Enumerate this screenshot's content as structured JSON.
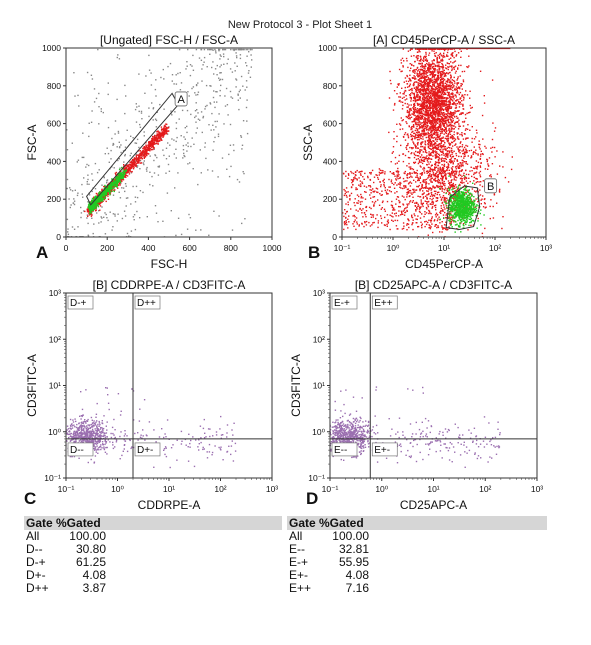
{
  "page_title": "New Protocol 3 - Plot Sheet 1",
  "colors": {
    "red": "#e41a1c",
    "green": "#22c922",
    "purple": "#9b6fb0",
    "gray": "#888888",
    "gate": "#555555"
  },
  "chart_data": [
    {
      "id": "A",
      "panel_letter": "A",
      "type": "scatter",
      "title": "[Ungated] FSC-H / FSC-A",
      "xlabel": "FSC-H",
      "ylabel": "FSC-A",
      "xscale": "linear",
      "yscale": "linear",
      "xlim": [
        0,
        1000
      ],
      "ylim": [
        0,
        1000
      ],
      "xticks": [
        "0",
        "200",
        "400",
        "600",
        "800",
        "1000"
      ],
      "yticks": [
        "0",
        "200",
        "400",
        "600",
        "800",
        "1000"
      ],
      "gates": [
        {
          "label": "A",
          "shape": "polygon"
        }
      ],
      "description_points": [
        [
          120,
          180
        ],
        [
          200,
          260
        ],
        [
          300,
          340
        ],
        [
          400,
          430
        ],
        [
          500,
          560
        ]
      ]
    },
    {
      "id": "B",
      "panel_letter": "B",
      "type": "scatter",
      "title": "[A] CD45PerCP-A / SSC-A",
      "xlabel": "CD45PerCP-A",
      "ylabel": "SSC-A",
      "xscale": "log",
      "yscale": "linear",
      "xlim": [
        0.1,
        1000
      ],
      "ylim": [
        0,
        1000
      ],
      "xticks": [
        "10⁻¹",
        "10⁰",
        "10¹",
        "10²",
        "10³"
      ],
      "yticks": [
        "0",
        "200",
        "400",
        "600",
        "800",
        "1000"
      ],
      "gates": [
        {
          "label": "B",
          "shape": "polygon"
        }
      ]
    },
    {
      "id": "C",
      "panel_letter": "C",
      "type": "scatter",
      "title": "[B] CDDRPE-A / CD3FITC-A",
      "xlabel": "CDDRPE-A",
      "ylabel": "CD3FITC-A",
      "xscale": "log",
      "yscale": "log",
      "xlim": [
        0.1,
        1000
      ],
      "ylim": [
        0.1,
        1000
      ],
      "xticks": [
        "10⁻¹",
        "10⁰",
        "10¹",
        "10²",
        "10³"
      ],
      "yticks": [
        "10⁻¹",
        "10⁰",
        "10¹",
        "10²",
        "10³"
      ],
      "quadrant_lines": {
        "x": 2,
        "y": 0.7
      },
      "quadrants": [
        "D-+",
        "D++",
        "D--",
        "D+-"
      ]
    },
    {
      "id": "D",
      "panel_letter": "D",
      "type": "scatter",
      "title": "[B] CD25APC-A / CD3FITC-A",
      "xlabel": "CD25APC-A",
      "ylabel": "CD3FITC-A",
      "xscale": "log",
      "yscale": "log",
      "xlim": [
        0.1,
        1000
      ],
      "ylim": [
        0.1,
        1000
      ],
      "xticks": [
        "10⁻¹",
        "10⁰",
        "10¹",
        "10²",
        "10³"
      ],
      "yticks": [
        "10⁻¹",
        "10⁰",
        "10¹",
        "10²",
        "10³"
      ],
      "quadrant_lines": {
        "x": 0.6,
        "y": 0.7
      },
      "quadrants": [
        "E-+",
        "E++",
        "E--",
        "E+-"
      ]
    }
  ],
  "tables": [
    {
      "header": [
        "Gate",
        "%Gated"
      ],
      "rows": [
        [
          "All",
          "100.00"
        ],
        [
          "D--",
          "30.80"
        ],
        [
          "D-+",
          "61.25"
        ],
        [
          "D+-",
          "4.08"
        ],
        [
          "D++",
          "3.87"
        ]
      ]
    },
    {
      "header": [
        "Gate",
        "%Gated"
      ],
      "rows": [
        [
          "All",
          "100.00"
        ],
        [
          "E--",
          "32.81"
        ],
        [
          "E-+",
          "55.95"
        ],
        [
          "E+-",
          "4.08"
        ],
        [
          "E++",
          "7.16"
        ]
      ]
    }
  ]
}
